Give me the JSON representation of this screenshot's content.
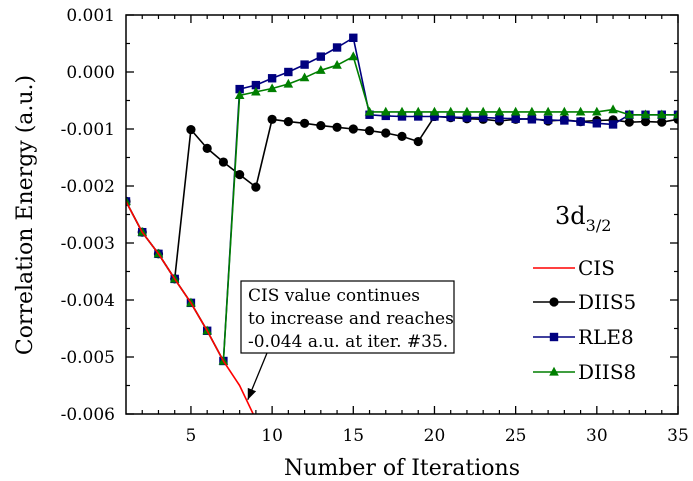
{
  "chart_data": {
    "type": "line",
    "xlabel": "Number of Iterations",
    "ylabel": "Correlation Energy (a.u.)",
    "xlim": [
      1,
      35
    ],
    "ylim": [
      -0.006,
      0.001
    ],
    "x_ticks": [
      5,
      10,
      15,
      20,
      25,
      30,
      35
    ],
    "x_tick_labels": [
      "5",
      "10",
      "15",
      "20",
      "25",
      "30",
      "35"
    ],
    "y_ticks": [
      0.001,
      0.0,
      -0.001,
      -0.002,
      -0.003,
      -0.004,
      -0.005,
      -0.006
    ],
    "y_tick_labels": [
      "0.001",
      "0.000",
      "-0.001",
      "-0.002",
      "-0.003",
      "-0.004",
      "-0.005",
      "-0.006"
    ],
    "grid": false,
    "legend_placement": "right",
    "state_label": {
      "base": "3d",
      "sub": "3/2"
    },
    "annotation": {
      "lines": [
        "CIS value continues",
        "to increase and reaches",
        "-0.044 a.u. at iter. #35."
      ],
      "arrow_target": {
        "x": 8.5,
        "y": -0.00575
      }
    },
    "series": [
      {
        "name": "CIS",
        "color": "#ff0000",
        "marker": "none",
        "x": [
          1,
          2,
          3,
          4,
          5,
          6,
          7,
          8,
          9
        ],
        "y": [
          -0.00227,
          -0.00281,
          -0.00319,
          -0.00363,
          -0.00405,
          -0.00454,
          -0.00507,
          -0.0055,
          -0.0061
        ]
      },
      {
        "name": "DIIS5",
        "color": "#000000",
        "marker": "circle",
        "x": [
          1,
          2,
          3,
          4,
          5,
          6,
          7,
          8,
          9,
          10,
          11,
          12,
          13,
          14,
          15,
          16,
          17,
          18,
          19,
          20,
          21,
          22,
          23,
          24,
          25,
          26,
          27,
          28,
          29,
          30,
          31,
          32,
          33,
          34,
          35
        ],
        "y": [
          -0.00227,
          -0.00281,
          -0.00319,
          -0.00363,
          -0.00101,
          -0.00134,
          -0.00158,
          -0.0018,
          -0.00202,
          -0.00083,
          -0.00087,
          -0.0009,
          -0.00094,
          -0.00097,
          -0.001,
          -0.00103,
          -0.00107,
          -0.00113,
          -0.00122,
          -0.00078,
          -0.0008,
          -0.00082,
          -0.00083,
          -0.00086,
          -0.00083,
          -0.00082,
          -0.00086,
          -0.00084,
          -0.00087,
          -0.00085,
          -0.00084,
          -0.00088,
          -0.00087,
          -0.00088,
          -0.00083
        ]
      },
      {
        "name": "RLE8",
        "color": "#00007f",
        "marker": "square",
        "x": [
          1,
          2,
          3,
          4,
          5,
          6,
          7,
          8,
          9,
          10,
          11,
          12,
          13,
          14,
          15,
          16,
          17,
          18,
          19,
          20,
          21,
          22,
          23,
          24,
          25,
          26,
          27,
          28,
          29,
          30,
          31,
          32,
          33,
          34,
          35
        ],
        "y": [
          -0.00227,
          -0.00281,
          -0.00319,
          -0.00363,
          -0.00405,
          -0.00454,
          -0.00507,
          -0.0003,
          -0.00023,
          -0.00011,
          0.0,
          0.00013,
          0.00027,
          0.00043,
          0.0006,
          -0.00075,
          -0.00077,
          -0.00078,
          -0.00078,
          -0.00078,
          -0.00079,
          -0.0008,
          -0.0008,
          -0.00081,
          -0.00082,
          -0.00083,
          -0.00084,
          -0.00085,
          -0.00087,
          -0.0009,
          -0.00092,
          -0.00075,
          -0.00075,
          -0.00075,
          -0.00075
        ]
      },
      {
        "name": "DIIS8",
        "color": "#007f00",
        "marker": "triangle",
        "x": [
          1,
          2,
          3,
          4,
          5,
          6,
          7,
          8,
          9,
          10,
          11,
          12,
          13,
          14,
          15,
          16,
          17,
          18,
          19,
          20,
          21,
          22,
          23,
          24,
          25,
          26,
          27,
          28,
          29,
          30,
          31,
          32,
          33,
          34,
          35
        ],
        "y": [
          -0.00227,
          -0.00281,
          -0.00319,
          -0.00363,
          -0.00405,
          -0.00454,
          -0.00507,
          -0.00041,
          -0.00035,
          -0.00029,
          -0.00021,
          -0.0001,
          3e-05,
          0.00012,
          0.00027,
          -0.0007,
          -0.0007,
          -0.0007,
          -0.0007,
          -0.0007,
          -0.0007,
          -0.0007,
          -0.0007,
          -0.0007,
          -0.0007,
          -0.0007,
          -0.0007,
          -0.0007,
          -0.0007,
          -0.0007,
          -0.00066,
          -0.00075,
          -0.00075,
          -0.00075,
          -0.00075
        ]
      }
    ]
  }
}
